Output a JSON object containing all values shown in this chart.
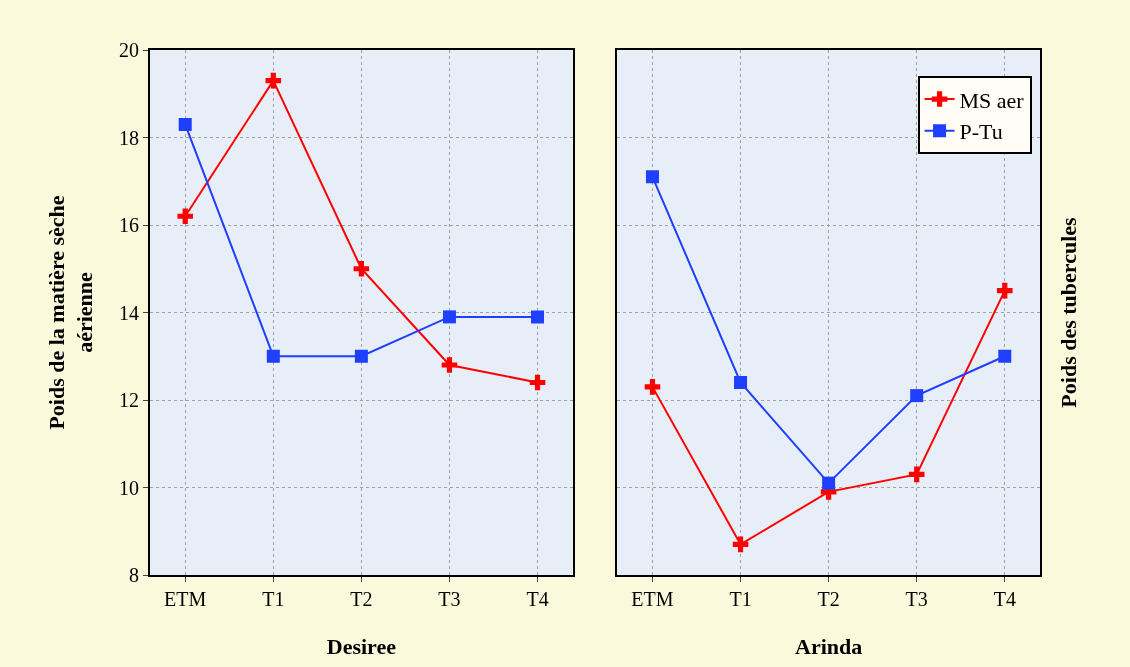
{
  "chart_data": [
    {
      "type": "line",
      "xlabel": "Desiree",
      "ylabel": "Poids de la matière sèche\naérienne",
      "categories": [
        "ETM",
        "T1",
        "T2",
        "T3",
        "T4"
      ],
      "ylim": [
        8,
        20
      ],
      "yticks": [
        8,
        10,
        12,
        14,
        16,
        18,
        20
      ],
      "grid": true,
      "legend": false,
      "line_style": "solid",
      "series": [
        {
          "color": "#ff0000",
          "marker": "cross",
          "values": [
            16.2,
            19.3,
            15.0,
            12.8,
            12.4
          ]
        },
        {
          "color": "#1f3fff",
          "marker": "square",
          "values": [
            18.3,
            13.0,
            13.0,
            13.9,
            13.9
          ]
        }
      ]
    },
    {
      "type": "line",
      "xlabel": "Arinda",
      "ylabel": "Poids des tubercules",
      "categories": [
        "ETM",
        "T1",
        "T2",
        "T3",
        "T4"
      ],
      "ylim": [
        8,
        20
      ],
      "yticks": [
        8,
        10,
        12,
        14,
        16,
        18,
        20
      ],
      "tick_labels": "x",
      "grid": true,
      "legend": "top right",
      "line_style": "solid",
      "series": [
        {
          "name": "MS aer",
          "color": "#ff0000",
          "marker": "cross",
          "values": [
            12.3,
            8.7,
            9.9,
            10.3,
            14.5
          ]
        },
        {
          "name": "P-Tu",
          "color": "#1f3fff",
          "marker": "square",
          "values": [
            17.1,
            12.4,
            10.1,
            12.1,
            13.0
          ]
        }
      ]
    }
  ]
}
